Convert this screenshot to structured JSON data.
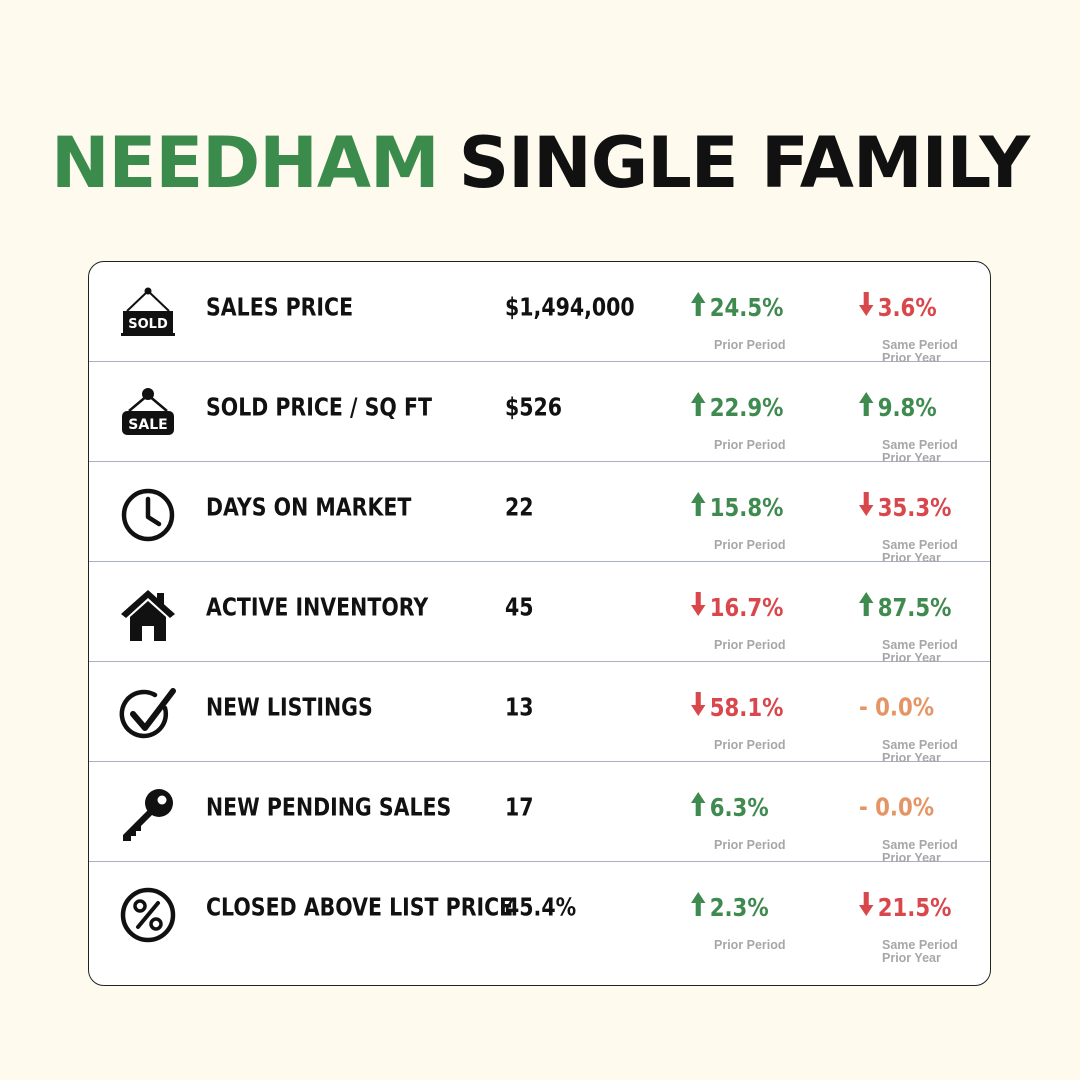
{
  "title": {
    "part1": "NEEDHAM",
    "part2": "SINGLE FAMILY"
  },
  "colors": {
    "accent_green": "#3a8b4c",
    "up": "#3f8a4f",
    "down": "#d9474c",
    "flat": "#e59565",
    "background": "#fefaee"
  },
  "rows": [
    {
      "icon": "sold-sign-icon",
      "metric": "SALES PRICE",
      "value": "$1,494,000",
      "prior_period": {
        "direction": "up",
        "text": "24.5%"
      },
      "prior_period_label": "Prior Period",
      "prior_year": {
        "direction": "down",
        "text": "3.6%"
      },
      "prior_year_label_1": "Same Period",
      "prior_year_label_2": "Prior Year"
    },
    {
      "icon": "sale-sign-icon",
      "metric": "SOLD PRICE / SQ FT",
      "value": "$526",
      "prior_period": {
        "direction": "up",
        "text": "22.9%"
      },
      "prior_period_label": "Prior Period",
      "prior_year": {
        "direction": "up",
        "text": "9.8%"
      },
      "prior_year_label_1": "Same Period",
      "prior_year_label_2": "Prior Year"
    },
    {
      "icon": "clock-icon",
      "metric": "DAYS ON MARKET",
      "value": "22",
      "prior_period": {
        "direction": "up",
        "text": "15.8%"
      },
      "prior_period_label": "Prior Period",
      "prior_year": {
        "direction": "down",
        "text": "35.3%"
      },
      "prior_year_label_1": "Same Period",
      "prior_year_label_2": "Prior Year"
    },
    {
      "icon": "house-icon",
      "metric": "ACTIVE INVENTORY",
      "value": "45",
      "prior_period": {
        "direction": "down",
        "text": "16.7%"
      },
      "prior_period_label": "Prior Period",
      "prior_year": {
        "direction": "up",
        "text": "87.5%"
      },
      "prior_year_label_1": "Same Period",
      "prior_year_label_2": "Prior Year"
    },
    {
      "icon": "checkmark-circle-icon",
      "metric": "NEW LISTINGS",
      "value": "13",
      "prior_period": {
        "direction": "down",
        "text": "58.1%"
      },
      "prior_period_label": "Prior Period",
      "prior_year": {
        "direction": "flat",
        "text": "0.0%"
      },
      "prior_year_label_1": "Same Period",
      "prior_year_label_2": "Prior Year"
    },
    {
      "icon": "key-icon",
      "metric": "NEW PENDING SALES",
      "value": "17",
      "prior_period": {
        "direction": "up",
        "text": "6.3%"
      },
      "prior_period_label": "Prior Period",
      "prior_year": {
        "direction": "flat",
        "text": "0.0%"
      },
      "prior_year_label_1": "Same Period",
      "prior_year_label_2": "Prior Year"
    },
    {
      "icon": "percent-circle-icon",
      "metric": "CLOSED ABOVE LIST PRICE",
      "value": "45.4%",
      "prior_period": {
        "direction": "up",
        "text": "2.3%"
      },
      "prior_period_label": "Prior Period",
      "prior_year": {
        "direction": "down",
        "text": "21.5%"
      },
      "prior_year_label_1": "Same Period",
      "prior_year_label_2": "Prior Year"
    }
  ]
}
